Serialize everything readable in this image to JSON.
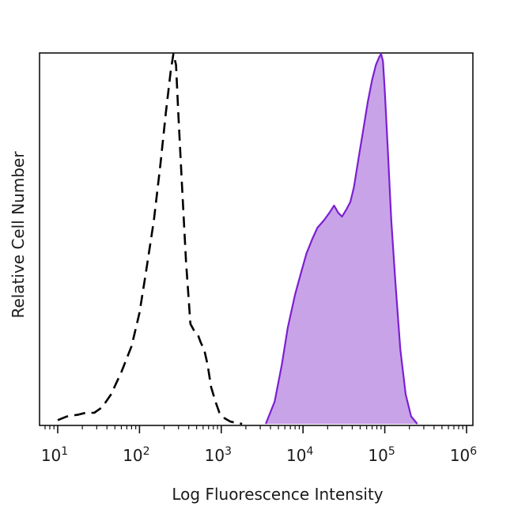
{
  "chart_data": {
    "type": "area",
    "xlabel": "Log Fluorescence Intensity",
    "ylabel": "Relative Cell Number",
    "x_scale": "log",
    "xlim": [
      10,
      1000000
    ],
    "ylim": [
      0,
      1
    ],
    "grid": false,
    "tick_labels": [
      {
        "base": "10",
        "exp": "1",
        "value": 10
      },
      {
        "base": "10",
        "exp": "2",
        "value": 100
      },
      {
        "base": "10",
        "exp": "3",
        "value": 1000
      },
      {
        "base": "10",
        "exp": "4",
        "value": 10000
      },
      {
        "base": "10",
        "exp": "5",
        "value": 100000
      },
      {
        "base": "10",
        "exp": "6",
        "value": 1000000
      }
    ],
    "series": [
      {
        "style": "dashed",
        "color": "#000000",
        "x": [
          10,
          13,
          18,
          22,
          28,
          35,
          45,
          60,
          80,
          100,
          120,
          150,
          180,
          210,
          240,
          260,
          280,
          300,
          330,
          370,
          420,
          470,
          520,
          560,
          620,
          680,
          750,
          850,
          950,
          1100,
          1300,
          1500,
          1800
        ],
        "y": [
          0.01,
          0.02,
          0.025,
          0.03,
          0.03,
          0.045,
          0.08,
          0.14,
          0.21,
          0.3,
          0.41,
          0.55,
          0.7,
          0.84,
          0.95,
          1.0,
          0.97,
          0.83,
          0.65,
          0.44,
          0.27,
          0.25,
          0.24,
          0.22,
          0.2,
          0.16,
          0.1,
          0.06,
          0.03,
          0.015,
          0.006,
          0.003,
          0.0
        ]
      },
      {
        "style": "filled",
        "color": "#7b1fd1",
        "fill": "#c9a3e8",
        "x": [
          3500,
          4500,
          5500,
          6500,
          8000,
          9500,
          11000,
          13000,
          15000,
          18000,
          21000,
          24000,
          27000,
          30000,
          34000,
          38000,
          42000,
          48000,
          55000,
          62000,
          70000,
          78000,
          85000,
          90000,
          95000,
          100000,
          110000,
          120000,
          135000,
          155000,
          180000,
          210000,
          250000
        ],
        "y": [
          0.0,
          0.06,
          0.16,
          0.26,
          0.35,
          0.41,
          0.46,
          0.5,
          0.53,
          0.55,
          0.57,
          0.59,
          0.57,
          0.56,
          0.58,
          0.6,
          0.64,
          0.72,
          0.8,
          0.87,
          0.93,
          0.97,
          0.99,
          1.0,
          0.98,
          0.9,
          0.72,
          0.55,
          0.38,
          0.2,
          0.08,
          0.02,
          0.0
        ]
      }
    ]
  }
}
